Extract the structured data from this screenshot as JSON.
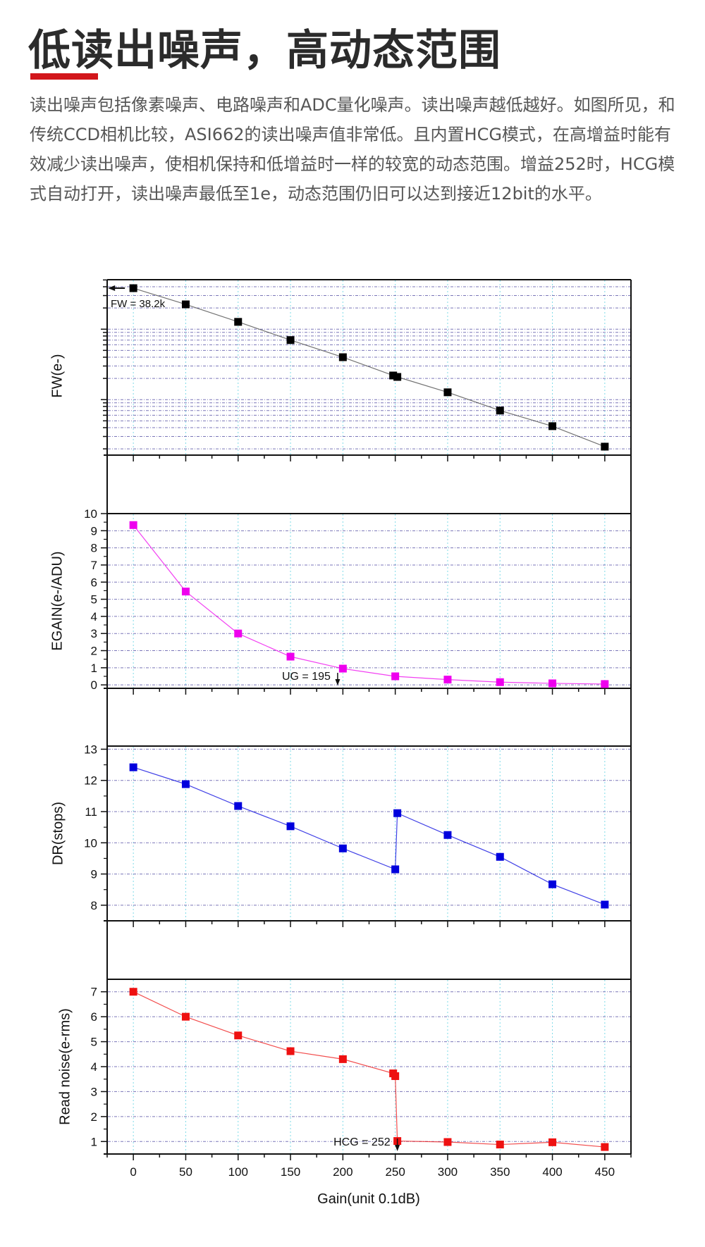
{
  "header": {
    "title": "低读出噪声，高动态范围",
    "accent_color": "#d2161b",
    "intro": "读出噪声包括像素噪声、电路噪声和ADC量化噪声。读出噪声越低越好。如图所见，和传统CCD相机比较，ASI662的读出噪声值非常低。且内置HCG模式，在高增益时能有效减少读出噪声，使相机保持和低增益时一样的较宽的动态范围。增益252时，HCG模式自动打开，读出噪声最低至1e，动态范围仍旧可以达到接近12bit的水平。"
  },
  "chart_data": {
    "type": "line",
    "title": "",
    "xlabel": "Gain(unit 0.1dB)",
    "xlim": [
      -25,
      475
    ],
    "xticks": [
      0,
      50,
      100,
      150,
      200,
      250,
      300,
      350,
      400,
      450
    ],
    "grid": true,
    "legend": "none",
    "panels": [
      {
        "name": "fw",
        "ylabel": "FW(e-)",
        "yscale": "log",
        "ylim": [
          163,
          50400
        ],
        "yticks": [],
        "color": "#000000",
        "x": [
          0,
          50,
          100,
          150,
          200,
          248,
          252,
          300,
          350,
          400,
          450
        ],
        "y": [
          38200,
          22500,
          12700,
          7000,
          4000,
          2200,
          2100,
          1270,
          700,
          420,
          215
        ],
        "annotation": {
          "text": "FW = 38.2k",
          "arrow": "left",
          "at_x": 0
        }
      },
      {
        "name": "egain",
        "ylabel": "EGAIN(e-/ADU)",
        "yscale": "linear",
        "ylim": [
          -0.2,
          10
        ],
        "yticks": [
          0,
          1,
          2,
          3,
          4,
          5,
          6,
          7,
          8,
          9,
          10
        ],
        "color": "#ee00ee",
        "x": [
          0,
          50,
          100,
          150,
          200,
          250,
          300,
          350,
          400,
          450
        ],
        "y": [
          9.33,
          5.45,
          3.0,
          1.65,
          0.95,
          0.5,
          0.31,
          0.16,
          0.09,
          0.05
        ],
        "annotation": {
          "text": "UG = 195",
          "arrow": "down",
          "at_x": 195
        }
      },
      {
        "name": "dr",
        "ylabel": "DR(stops)",
        "yscale": "linear",
        "ylim": [
          7.5,
          13.1
        ],
        "yticks": [
          8,
          9,
          10,
          11,
          12,
          13
        ],
        "color": "#0000dd",
        "x": [
          0,
          50,
          100,
          150,
          200,
          250,
          252,
          300,
          350,
          400,
          450
        ],
        "y": [
          12.42,
          11.88,
          11.18,
          10.53,
          9.82,
          9.15,
          10.95,
          10.25,
          9.55,
          8.67,
          8.02
        ],
        "annotation": null
      },
      {
        "name": "read-noise",
        "ylabel": "Read noise(e-rms)",
        "yscale": "linear",
        "ylim": [
          0.5,
          7.5
        ],
        "yticks": [
          1,
          2,
          3,
          4,
          5,
          6,
          7
        ],
        "color": "#ee1111",
        "x": [
          0,
          50,
          100,
          150,
          200,
          248,
          250,
          252,
          300,
          350,
          400,
          450
        ],
        "y": [
          7.0,
          6.0,
          5.25,
          4.62,
          4.3,
          3.73,
          3.62,
          1.02,
          0.98,
          0.88,
          0.97,
          0.78
        ],
        "annotation": {
          "text": "HCG = 252",
          "arrow": "down",
          "at_x": 252
        }
      }
    ]
  }
}
